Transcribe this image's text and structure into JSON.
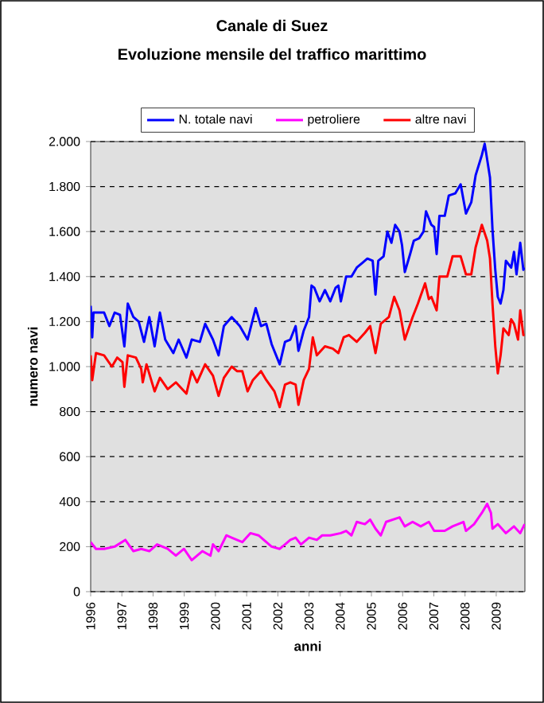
{
  "chart_data": {
    "type": "line",
    "title": "Canale di Suez",
    "subtitle": "Evoluzione mensile del traffico marittimo",
    "xlabel": "anni",
    "ylabel": "numero navi",
    "xlim": [
      1996,
      2009.92
    ],
    "xticks": [
      1996,
      1997,
      1998,
      1999,
      2000,
      2001,
      2002,
      2003,
      2004,
      2005,
      2006,
      2007,
      2008,
      2009
    ],
    "ylim": [
      0,
      2000
    ],
    "yticks": [
      0,
      200,
      400,
      600,
      800,
      {
        "value": 1000,
        "label": "1.000"
      },
      {
        "value": 1200,
        "label": "1.200"
      },
      {
        "value": 1400,
        "label": "1.400"
      },
      {
        "value": 1600,
        "label": "1.600"
      },
      {
        "value": 1800,
        "label": "1.800"
      },
      {
        "value": 2000,
        "label": "2.000"
      }
    ],
    "grid": "y",
    "legend": "top",
    "marker": "none",
    "line_style": "solid",
    "series": [
      {
        "name": "N. totale navi",
        "color": "#0000ff",
        "x": [
          1996.0,
          1996.05,
          1996.09,
          1996.43,
          1996.6,
          1996.77,
          1996.94,
          1997.08,
          1997.19,
          1997.37,
          1997.54,
          1997.71,
          1997.88,
          1998.05,
          1998.22,
          1998.39,
          1998.65,
          1998.82,
          1999.07,
          1999.24,
          1999.5,
          1999.67,
          1999.92,
          2000.1,
          2000.27,
          2000.52,
          2000.78,
          2001.03,
          2001.29,
          2001.46,
          2001.63,
          2001.8,
          2002.06,
          2002.23,
          2002.4,
          2002.57,
          2002.66,
          2002.83,
          2003.0,
          2003.08,
          2003.17,
          2003.34,
          2003.51,
          2003.68,
          2003.85,
          2003.94,
          2004.02,
          2004.19,
          2004.36,
          2004.53,
          2004.7,
          2004.87,
          2005.04,
          2005.13,
          2005.22,
          2005.39,
          2005.51,
          2005.64,
          2005.76,
          2005.9,
          2005.98,
          2006.07,
          2006.24,
          2006.36,
          2006.53,
          2006.67,
          2006.75,
          2006.92,
          2007.01,
          2007.09,
          2007.18,
          2007.35,
          2007.48,
          2007.69,
          2007.86,
          2008.03,
          2008.2,
          2008.34,
          2008.54,
          2008.63,
          2008.71,
          2008.8,
          2008.88,
          2008.97,
          2009.05,
          2009.14,
          2009.23,
          2009.31,
          2009.48,
          2009.57,
          2009.65,
          2009.77,
          2009.87,
          2009.91
        ],
        "values": [
          1270,
          1130,
          1240,
          1240,
          1180,
          1240,
          1230,
          1090,
          1280,
          1220,
          1200,
          1110,
          1220,
          1090,
          1240,
          1120,
          1060,
          1120,
          1040,
          1120,
          1110,
          1190,
          1120,
          1050,
          1180,
          1220,
          1180,
          1120,
          1260,
          1180,
          1190,
          1100,
          1010,
          1110,
          1120,
          1180,
          1070,
          1160,
          1220,
          1360,
          1350,
          1290,
          1340,
          1290,
          1350,
          1360,
          1290,
          1400,
          1400,
          1440,
          1460,
          1480,
          1470,
          1320,
          1470,
          1490,
          1600,
          1550,
          1630,
          1600,
          1540,
          1420,
          1500,
          1560,
          1570,
          1600,
          1690,
          1630,
          1620,
          1500,
          1670,
          1670,
          1760,
          1770,
          1810,
          1680,
          1730,
          1850,
          1940,
          1990,
          1920,
          1840,
          1610,
          1430,
          1310,
          1280,
          1340,
          1470,
          1440,
          1510,
          1410,
          1550,
          1430,
          1440
        ]
      },
      {
        "name": "petroliere",
        "color": "#ff00ff",
        "x": [
          1996.0,
          1996.17,
          1996.43,
          1996.77,
          1997.11,
          1997.37,
          1997.62,
          1997.88,
          1998.13,
          1998.47,
          1998.73,
          1998.99,
          1999.24,
          1999.58,
          1999.84,
          1999.92,
          2000.1,
          2000.35,
          2000.52,
          2000.86,
          2001.12,
          2001.38,
          2001.63,
          2001.8,
          2002.06,
          2002.23,
          2002.4,
          2002.57,
          2002.74,
          2003.0,
          2003.25,
          2003.42,
          2003.68,
          2004.02,
          2004.19,
          2004.36,
          2004.53,
          2004.79,
          2004.96,
          2005.13,
          2005.3,
          2005.47,
          2005.9,
          2006.07,
          2006.32,
          2006.58,
          2006.84,
          2007.01,
          2007.35,
          2007.6,
          2007.95,
          2008.03,
          2008.29,
          2008.54,
          2008.71,
          2008.83,
          2008.88,
          2009.05,
          2009.31,
          2009.57,
          2009.77,
          2009.91
        ],
        "values": [
          220,
          190,
          190,
          200,
          230,
          180,
          190,
          180,
          210,
          190,
          160,
          190,
          140,
          180,
          160,
          210,
          180,
          250,
          240,
          220,
          260,
          250,
          220,
          200,
          190,
          210,
          230,
          240,
          210,
          240,
          230,
          250,
          250,
          260,
          270,
          250,
          310,
          300,
          320,
          280,
          250,
          310,
          330,
          290,
          310,
          290,
          310,
          270,
          270,
          290,
          310,
          270,
          300,
          350,
          390,
          350,
          280,
          300,
          260,
          290,
          260,
          300
        ]
      },
      {
        "name": "altre navi",
        "color": "#ff0000",
        "x": [
          1996.0,
          1996.05,
          1996.17,
          1996.43,
          1996.68,
          1996.85,
          1997.02,
          1997.08,
          1997.19,
          1997.45,
          1997.62,
          1997.67,
          1997.79,
          1998.05,
          1998.22,
          1998.47,
          1998.73,
          1999.07,
          1999.24,
          1999.41,
          1999.67,
          1999.92,
          2000.1,
          2000.27,
          2000.52,
          2000.69,
          2000.86,
          2001.03,
          2001.2,
          2001.46,
          2001.63,
          2001.89,
          2002.06,
          2002.23,
          2002.4,
          2002.57,
          2002.66,
          2002.83,
          2003.0,
          2003.12,
          2003.25,
          2003.51,
          2003.76,
          2003.94,
          2004.11,
          2004.28,
          2004.53,
          2004.79,
          2004.96,
          2005.13,
          2005.3,
          2005.56,
          2005.73,
          2005.9,
          2006.07,
          2006.32,
          2006.49,
          2006.72,
          2006.84,
          2006.92,
          2007.09,
          2007.18,
          2007.43,
          2007.6,
          2007.86,
          2008.03,
          2008.2,
          2008.34,
          2008.54,
          2008.71,
          2008.8,
          2008.88,
          2008.97,
          2009.05,
          2009.14,
          2009.23,
          2009.4,
          2009.48,
          2009.57,
          2009.7,
          2009.77,
          2009.87,
          2009.91
        ],
        "values": [
          1050,
          940,
          1060,
          1050,
          1000,
          1040,
          1020,
          910,
          1050,
          1040,
          990,
          930,
          1010,
          890,
          950,
          900,
          930,
          880,
          980,
          930,
          1010,
          960,
          870,
          950,
          1000,
          980,
          980,
          890,
          940,
          980,
          940,
          890,
          820,
          920,
          930,
          920,
          830,
          940,
          990,
          1130,
          1050,
          1090,
          1080,
          1060,
          1130,
          1140,
          1110,
          1150,
          1180,
          1060,
          1190,
          1220,
          1310,
          1250,
          1120,
          1220,
          1280,
          1370,
          1300,
          1310,
          1250,
          1400,
          1400,
          1490,
          1490,
          1410,
          1410,
          1530,
          1630,
          1560,
          1480,
          1280,
          1090,
          970,
          1050,
          1170,
          1140,
          1210,
          1190,
          1120,
          1250,
          1140,
          1140
        ]
      }
    ]
  }
}
